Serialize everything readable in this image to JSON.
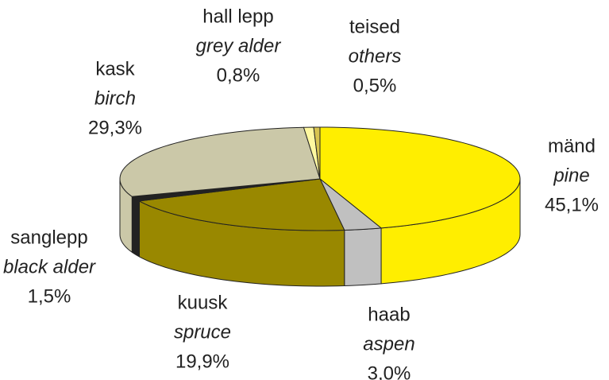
{
  "chart_data": {
    "type": "pie3d",
    "categories": [
      "mänd",
      "haab",
      "kuusk",
      "sanglepp",
      "kask",
      "hall lepp",
      "teised"
    ],
    "english_names": [
      "pine",
      "aspen",
      "spruce",
      "black alder",
      "birch",
      "grey alder",
      "others"
    ],
    "values": [
      45.1,
      3.0,
      19.9,
      1.5,
      29.3,
      0.8,
      0.5
    ],
    "value_labels": [
      "45,1%",
      "3,0%",
      "19,9%",
      "1,5%",
      "29,3%",
      "0,8%",
      "0,5%"
    ],
    "colors": [
      "#ffee00",
      "#c0c0c0",
      "#998800",
      "#222222",
      "#cbc8a8",
      "#fff8a0",
      "#d8c450"
    ]
  }
}
